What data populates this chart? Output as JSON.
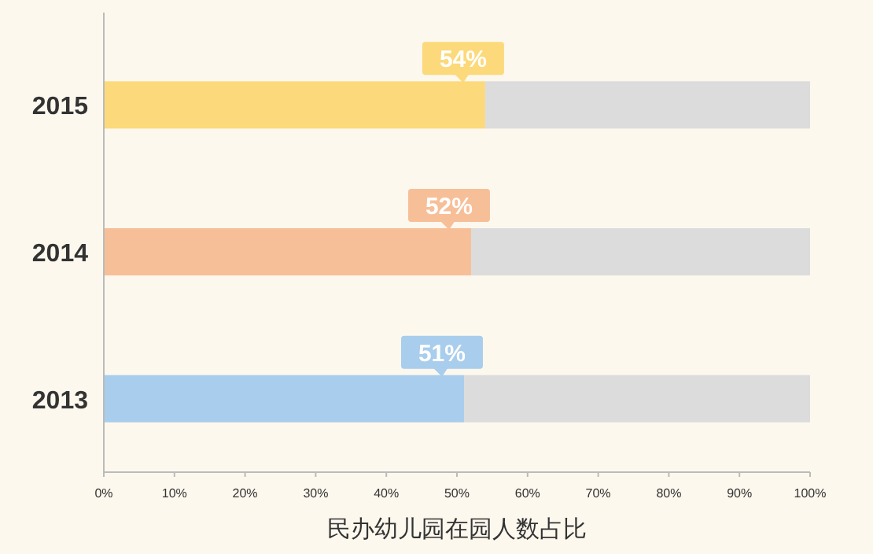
{
  "chart_data": {
    "type": "bar",
    "orientation": "horizontal",
    "stacked": true,
    "categories": [
      "2015",
      "2014",
      "2013"
    ],
    "xlabel": "民办幼儿园在园人数占比",
    "xlim": [
      0,
      100
    ],
    "xticks": [
      {
        "value": 0,
        "label": "0%"
      },
      {
        "value": 10,
        "label": "10%"
      },
      {
        "value": 20,
        "label": "20%"
      },
      {
        "value": 30,
        "label": "30%"
      },
      {
        "value": 40,
        "label": "40%"
      },
      {
        "value": 50,
        "label": "50%"
      },
      {
        "value": 60,
        "label": "60%"
      },
      {
        "value": 70,
        "label": "70%"
      },
      {
        "value": 80,
        "label": "80%"
      },
      {
        "value": 90,
        "label": "90%"
      },
      {
        "value": 100,
        "label": "100%"
      }
    ],
    "series": [
      {
        "colors": [
          "#fcd97a",
          "#f7bf98",
          "#a9cdec"
        ],
        "values": [
          54,
          52,
          51
        ],
        "value_labels": [
          "54%",
          "52%",
          "51%"
        ]
      },
      {
        "color": "#dcdcdc",
        "values": [
          46,
          48,
          49
        ]
      }
    ]
  }
}
